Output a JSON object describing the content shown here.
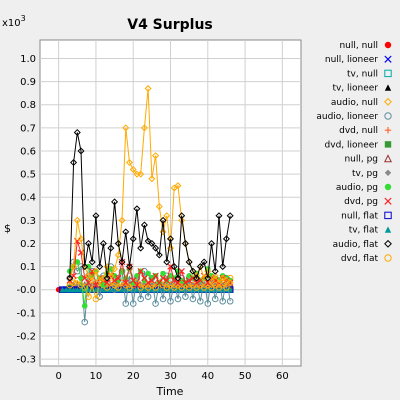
{
  "chart_data": {
    "type": "line",
    "title": "V4 Surplus",
    "xlabel": "Time",
    "ylabel": "$",
    "y_multiplier": "x10",
    "y_multiplier_exp": "3",
    "xlim": [
      -5,
      65
    ],
    "ylim": [
      -0.33,
      1.08
    ],
    "xticks": [
      "0",
      "10",
      "20",
      "30",
      "40",
      "50",
      "60"
    ],
    "yticks": [
      "-0.3",
      "-0.2",
      "-0.1",
      "-0.0",
      "0.1",
      "0.2",
      "0.3",
      "0.4",
      "0.5",
      "0.6",
      "0.7",
      "0.8",
      "0.9",
      "1.0"
    ],
    "grid": true,
    "legend_position": "right",
    "series": [
      {
        "name": "null, null",
        "color": "#ff0000",
        "marker": "dot",
        "x": [
          0,
          46
        ],
        "flat": 0.0
      },
      {
        "name": "null, lioneer",
        "color": "#0000ff",
        "marker": "x",
        "x": [
          1,
          46
        ],
        "flat": 0.0
      },
      {
        "name": "tv, null",
        "color": "#00aaaa",
        "marker": "square",
        "x": [
          1,
          46
        ],
        "flat": 0.0
      },
      {
        "name": "tv, lioneer",
        "color": "#000000",
        "marker": "tri",
        "x": [
          1,
          46
        ],
        "flat": 0.0
      },
      {
        "name": "audio, null",
        "color": "#ffaa00",
        "marker": "diamond",
        "x": [
          3,
          4,
          5,
          6,
          7,
          8,
          9,
          10,
          11,
          12,
          13,
          14,
          15,
          16,
          17,
          18,
          19,
          20,
          21,
          22,
          23,
          24,
          25,
          26,
          27,
          28,
          29,
          30,
          31,
          32,
          33,
          34,
          35,
          36,
          37,
          38,
          39,
          40,
          41,
          42,
          43,
          44,
          45,
          46
        ],
        "y": [
          0.05,
          0.1,
          0.3,
          0.22,
          0.1,
          0.06,
          0.04,
          0.08,
          0.04,
          0.05,
          0.1,
          0.06,
          0.09,
          0.15,
          0.3,
          0.7,
          0.55,
          0.52,
          0.5,
          0.5,
          0.7,
          0.87,
          0.48,
          0.58,
          0.36,
          0.25,
          0.32,
          0.18,
          0.44,
          0.45,
          0.3,
          0.2,
          0.12,
          0.08,
          0.06,
          0.1,
          0.05,
          0.08,
          0.04,
          0.06,
          0.03,
          0.05,
          0.04,
          0.03
        ]
      },
      {
        "name": "audio, lioneer",
        "color": "#5f8f9f",
        "marker": "circle",
        "x": [
          3,
          4,
          5,
          6,
          7,
          8,
          9,
          10,
          11,
          12,
          13,
          14,
          15,
          16,
          17,
          18,
          19,
          20,
          21,
          22,
          23,
          24,
          25,
          26,
          27,
          28,
          29,
          30,
          31,
          32,
          33,
          34,
          35,
          36,
          37,
          38,
          39,
          40,
          41,
          42,
          43,
          44,
          45,
          46
        ],
        "y": [
          0.05,
          0.12,
          0.08,
          0.1,
          -0.14,
          0.06,
          0.08,
          0.03,
          -0.03,
          0.06,
          0.03,
          0.1,
          0.0,
          0.05,
          0.08,
          -0.06,
          0.06,
          -0.06,
          0.05,
          -0.04,
          0.08,
          -0.03,
          0.05,
          -0.06,
          0.03,
          -0.04,
          0.06,
          -0.05,
          0.03,
          -0.04,
          0.05,
          -0.03,
          0.05,
          -0.04,
          0.03,
          -0.05,
          0.04,
          -0.06,
          0.05,
          -0.04,
          0.04,
          -0.05,
          0.05,
          -0.05
        ]
      },
      {
        "name": "dvd, null",
        "color": "#ff6633",
        "marker": "plus",
        "x": [
          3,
          46
        ],
        "flat": 0.02
      },
      {
        "name": "dvd, lioneer",
        "color": "#339933",
        "marker": "sqfill",
        "x": [
          3,
          46
        ],
        "flat": 0.01
      },
      {
        "name": "null, pg",
        "color": "#993333",
        "marker": "trihollow",
        "x": [
          4,
          46
        ],
        "flat": 0.02
      },
      {
        "name": "tv, pg",
        "color": "#888888",
        "marker": "diamondfill",
        "x": [
          4,
          46
        ],
        "flat": 0.02
      },
      {
        "name": "audio, pg",
        "color": "#33dd33",
        "marker": "dot",
        "x": [
          3,
          4,
          5,
          6,
          7,
          8,
          9,
          10,
          11,
          12,
          13,
          14,
          15,
          16,
          17,
          18,
          19,
          20,
          21,
          22,
          23,
          24,
          25,
          26,
          27,
          28,
          29,
          30,
          31,
          32,
          33,
          34,
          35,
          36,
          37,
          38,
          39,
          40,
          41,
          42,
          43,
          44,
          45,
          46
        ],
        "y": [
          0.08,
          0.1,
          0.12,
          0.05,
          -0.07,
          0.1,
          0.06,
          0.08,
          0.05,
          0.02,
          0.07,
          0.09,
          0.06,
          0.04,
          0.08,
          0.05,
          0.09,
          0.03,
          0.06,
          0.08,
          0.04,
          0.07,
          0.05,
          0.06,
          0.03,
          0.07,
          0.04,
          0.06,
          0.05,
          0.08,
          0.04,
          0.03,
          0.06,
          0.05,
          0.07,
          0.04,
          0.05,
          0.09,
          0.06,
          0.05,
          0.04,
          0.06,
          0.05,
          0.04
        ]
      },
      {
        "name": "dvd, pg",
        "color": "#ff2222",
        "marker": "x",
        "x": [
          3,
          4,
          5,
          6,
          7,
          8,
          9,
          10,
          11,
          12,
          13,
          14,
          15,
          16,
          17,
          18,
          19,
          20,
          21,
          22,
          23,
          24,
          25,
          26,
          27,
          28,
          29,
          30,
          31,
          32,
          33,
          34,
          35,
          36,
          37,
          38,
          39,
          40,
          41,
          42,
          43,
          44,
          45,
          46
        ],
        "y": [
          0.04,
          0.06,
          0.21,
          0.16,
          0.05,
          0.03,
          0.08,
          0.02,
          0.05,
          0.04,
          0.03,
          0.06,
          0.04,
          0.05,
          0.12,
          0.03,
          0.1,
          0.04,
          0.02,
          0.08,
          0.05,
          0.03,
          0.04,
          0.06,
          0.03,
          0.05,
          0.04,
          0.1,
          0.04,
          0.03,
          0.08,
          0.03,
          0.04,
          0.05,
          0.03,
          0.04,
          0.06,
          0.03,
          0.05,
          0.04,
          0.03,
          0.05,
          0.04,
          0.03
        ]
      },
      {
        "name": "null, flat",
        "color": "#0000cc",
        "marker": "square",
        "x": [
          1,
          46
        ],
        "flat": 0.0
      },
      {
        "name": "tv, flat",
        "color": "#009999",
        "marker": "trifill",
        "x": [
          1,
          46
        ],
        "flat": 0.0
      },
      {
        "name": "audio, flat",
        "color": "#000000",
        "marker": "diamond",
        "x": [
          3,
          4,
          5,
          6,
          7,
          8,
          9,
          10,
          11,
          12,
          13,
          14,
          15,
          16,
          17,
          18,
          19,
          20,
          21,
          22,
          23,
          24,
          25,
          26,
          27,
          28,
          29,
          30,
          31,
          32,
          33,
          34,
          35,
          36,
          37,
          38,
          39,
          40,
          41,
          42,
          43,
          44,
          45,
          46
        ],
        "y": [
          0.05,
          0.55,
          0.68,
          0.6,
          0.1,
          0.2,
          0.12,
          0.32,
          0.1,
          0.2,
          0.05,
          0.18,
          0.38,
          0.2,
          0.12,
          0.25,
          0.1,
          0.22,
          0.35,
          0.18,
          0.28,
          0.21,
          0.2,
          0.18,
          0.15,
          0.3,
          0.12,
          0.22,
          0.1,
          0.05,
          0.32,
          0.2,
          0.12,
          0.08,
          0.05,
          0.1,
          0.12,
          0.05,
          0.2,
          0.08,
          0.32,
          0.1,
          0.22,
          0.32
        ]
      },
      {
        "name": "dvd, flat",
        "color": "#ffaa00",
        "marker": "circle",
        "x": [
          3,
          4,
          5,
          6,
          7,
          8,
          9,
          10,
          11,
          12,
          13,
          14,
          15,
          16,
          17,
          18,
          19,
          20,
          21,
          22,
          23,
          24,
          25,
          26,
          27,
          28,
          29,
          30,
          31,
          32,
          33,
          34,
          35,
          36,
          37,
          38,
          39,
          40,
          41,
          42,
          43,
          44,
          45,
          46
        ],
        "y": [
          0.02,
          0.03,
          0.04,
          0.02,
          0.01,
          -0.03,
          0.02,
          -0.04,
          0.03,
          0.02,
          0.01,
          0.03,
          0.02,
          0.01,
          0.03,
          0.02,
          0.01,
          0.02,
          0.03,
          0.01,
          0.02,
          0.01,
          0.02,
          0.01,
          0.03,
          0.02,
          0.01,
          0.02,
          0.01,
          0.02,
          0.01,
          0.02,
          0.01,
          0.02,
          0.01,
          0.02,
          0.01,
          0.02,
          0.01,
          0.02,
          0.01,
          0.02,
          0.01,
          0.05
        ]
      }
    ]
  }
}
